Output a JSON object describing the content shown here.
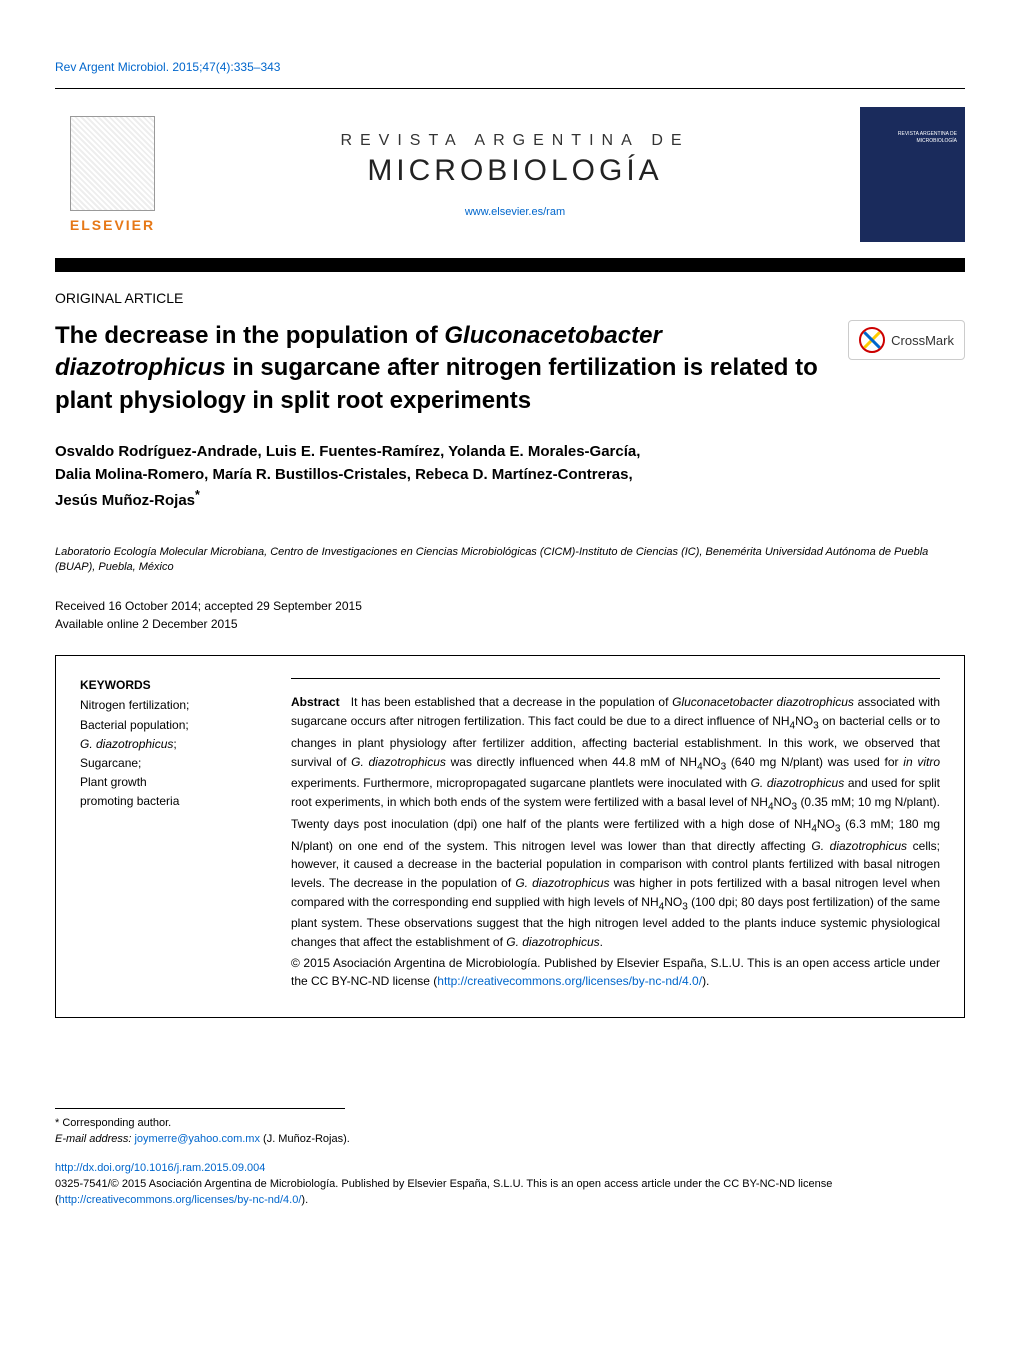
{
  "citation": "Rev Argent Microbiol. 2015;47(4):335–343",
  "publisher": {
    "name": "ELSEVIER"
  },
  "journal": {
    "supertitle": "REVISTA ARGENTINA DE",
    "title": "MICROBIOLOGÍA",
    "url": "www.elsevier.es/ram",
    "cover_label": "REVISTA ARGENTINA DE MICROBIOLOGÍA"
  },
  "article_type": "ORIGINAL ARTICLE",
  "article_title_plain": "The decrease in the population of Gluconacetobacter diazotrophicus in sugarcane after nitrogen fertilization is related to plant physiology in split root experiments",
  "crossmark_label": "CrossMark",
  "authors_plain": "Osvaldo Rodríguez-Andrade, Luis E. Fuentes-Ramírez, Yolanda E. Morales-García, Dalia Molina-Romero, María R. Bustillos-Cristales, Rebeca D. Martínez-Contreras, Jesús Muñoz-Rojas*",
  "affiliation": "Laboratorio Ecología Molecular Microbiana, Centro de Investigaciones en Ciencias Microbiológicas (CICM)-Instituto de Ciencias (IC), Benemérita Universidad Autónoma de Puebla (BUAP), Puebla, México",
  "dates": {
    "received_accepted": "Received 16 October 2014; accepted 29 September 2015",
    "online": "Available online 2 December 2015"
  },
  "keywords": {
    "heading": "KEYWORDS",
    "items": [
      "Nitrogen fertilization;",
      "Bacterial population;",
      "G. diazotrophicus;",
      "Sugarcane;",
      "Plant growth promoting bacteria"
    ]
  },
  "abstract": {
    "lead": "Abstract",
    "body_plain": "It has been established that a decrease in the population of Gluconacetobacter diazotrophicus associated with sugarcane occurs after nitrogen fertilization. This fact could be due to a direct influence of NH4NO3 on bacterial cells or to changes in plant physiology after fertilizer addition, affecting bacterial establishment. In this work, we observed that survival of G. diazotrophicus was directly influenced when 44.8 mM of NH4NO3 (640 mg N/plant) was used for in vitro experiments. Furthermore, micropropagated sugarcane plantlets were inoculated with G. diazotrophicus and used for split root experiments, in which both ends of the system were fertilized with a basal level of NH4NO3 (0.35 mM; 10 mg N/plant). Twenty days post inoculation (dpi) one half of the plants were fertilized with a high dose of NH4NO3 (6.3 mM; 180 mg N/plant) on one end of the system. This nitrogen level was lower than that directly affecting G. diazotrophicus cells; however, it caused a decrease in the bacterial population in comparison with control plants fertilized with basal nitrogen levels. The decrease in the population of G. diazotrophicus was higher in pots fertilized with a basal nitrogen level when compared with the corresponding end supplied with high levels of NH4NO3 (100 dpi; 80 days post fertilization) of the same plant system. These observations suggest that the high nitrogen level added to the plants induce systemic physiological changes that affect the establishment of G. diazotrophicus."
  },
  "license": {
    "text_prefix": "© 2015 Asociación Argentina de Microbiología. Published by Elsevier España, S.L.U. This is an open access article under the CC BY-NC-ND license (",
    "url": "http://creativecommons.org/licenses/by-nc-nd/4.0/",
    "text_suffix": ")."
  },
  "footnotes": {
    "corresponding": "* Corresponding author.",
    "email_label": "E-mail address:",
    "email": "joymerre@yahoo.com.mx",
    "email_author": "(J. Muñoz-Rojas)."
  },
  "doi": "http://dx.doi.org/10.1016/j.ram.2015.09.004",
  "footer_copyright": {
    "line1_prefix": "0325-7541/© 2015 Asociación Argentina de Microbiología. Published by Elsevier España, S.L.U. This is an open access article under the CC BY-NC-ND license (",
    "url": "http://creativecommons.org/licenses/by-nc-nd/4.0/",
    "line1_suffix": ")."
  },
  "colors": {
    "link": "#0066cc",
    "elsevier_orange": "#e67817",
    "cover_bg": "#1a2b5c",
    "black": "#000000",
    "crossmark_red": "#cc0000"
  },
  "typography": {
    "citation_fontsize": 12,
    "journal_supertitle_fontsize": 16,
    "journal_title_fontsize": 30,
    "article_title_fontsize": 24,
    "authors_fontsize": 15,
    "body_fontsize": 12,
    "footnote_fontsize": 11
  }
}
